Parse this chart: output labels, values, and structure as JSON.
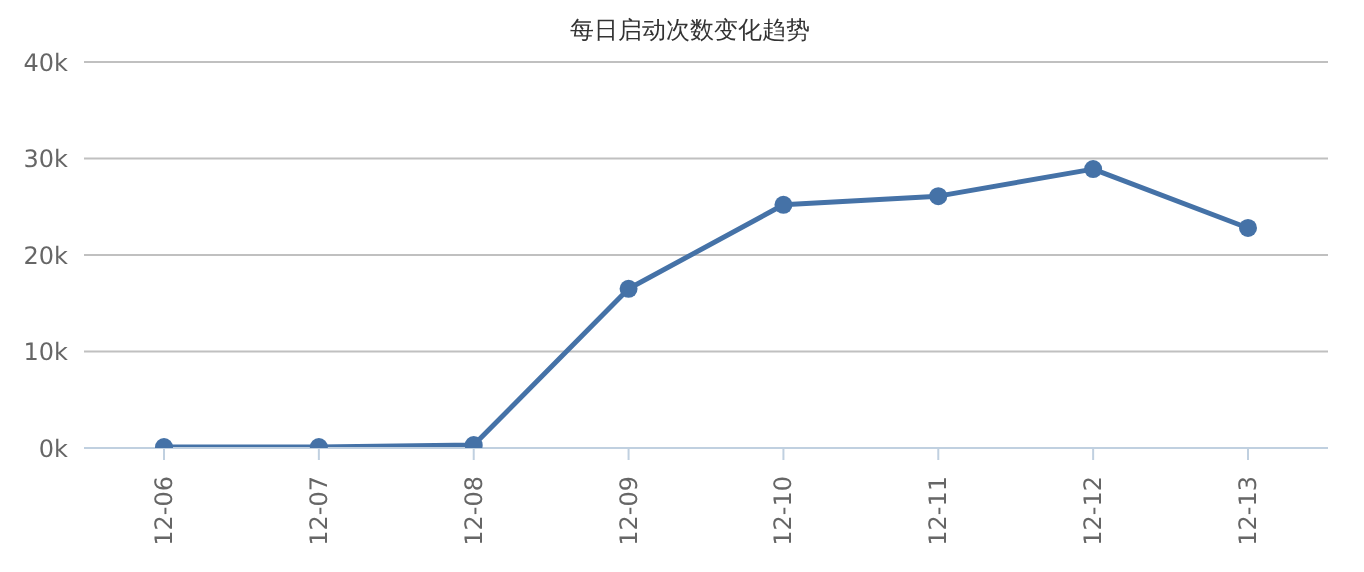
{
  "chart_data": {
    "type": "line",
    "title": "每日启动次数变化趋势",
    "categories": [
      "12-06",
      "12-07",
      "12-08",
      "12-09",
      "12-10",
      "12-11",
      "12-12",
      "12-13"
    ],
    "series": [
      {
        "color": "#4572a7",
        "values": [
          100,
          100,
          300,
          16500,
          25200,
          26100,
          28900,
          22800
        ]
      }
    ],
    "ylim": [
      0,
      40000
    ],
    "yticks": [
      {
        "value": 0,
        "label": "0k"
      },
      {
        "value": 10000,
        "label": "10k"
      },
      {
        "value": 20000,
        "label": "20k"
      },
      {
        "value": 30000,
        "label": "30k"
      },
      {
        "value": 40000,
        "label": "40k"
      }
    ],
    "grid": "y",
    "legend": false,
    "marker": "circle",
    "line_style": "solid"
  }
}
